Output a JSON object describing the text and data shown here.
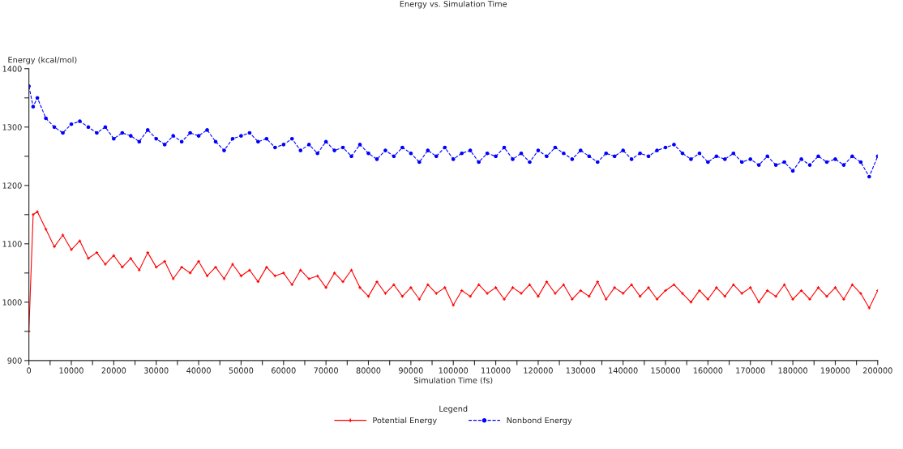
{
  "chart_data": {
    "type": "line",
    "title": "Energy vs. Simulation Time",
    "xlabel": "Simulation Time (fs)",
    "ylabel": "Energy (kcal/mol)",
    "legend_title": "Legend",
    "legend": "bottom",
    "grid": false,
    "xlim": [
      0,
      200000
    ],
    "ylim": [
      900,
      1400
    ],
    "xticks": [
      0,
      {
        "value": 5000,
        "label": null
      },
      10000,
      {
        "value": 15000,
        "label": null
      },
      20000,
      {
        "value": 25000,
        "label": null
      },
      30000,
      {
        "value": 35000,
        "label": null
      },
      40000,
      {
        "value": 45000,
        "label": null
      },
      50000,
      {
        "value": 55000,
        "label": null
      },
      60000,
      {
        "value": 65000,
        "label": null
      },
      70000,
      {
        "value": 75000,
        "label": null
      },
      80000,
      {
        "value": 85000,
        "label": null
      },
      90000,
      {
        "value": 95000,
        "label": null
      },
      100000,
      {
        "value": 105000,
        "label": null
      },
      110000,
      {
        "value": 115000,
        "label": null
      },
      120000,
      {
        "value": 125000,
        "label": null
      },
      130000,
      {
        "value": 135000,
        "label": null
      },
      140000,
      {
        "value": 145000,
        "label": null
      },
      150000,
      {
        "value": 155000,
        "label": null
      },
      160000,
      {
        "value": 165000,
        "label": null
      },
      170000,
      {
        "value": 175000,
        "label": null
      },
      180000,
      {
        "value": 185000,
        "label": null
      },
      190000,
      {
        "value": 195000,
        "label": null
      },
      200000
    ],
    "yticks": [
      900,
      {
        "value": 950,
        "label": null
      },
      1000,
      {
        "value": 1050,
        "label": null
      },
      1100,
      {
        "value": 1150,
        "label": null
      },
      1200,
      {
        "value": 1250,
        "label": null
      },
      1300,
      {
        "value": 1350,
        "label": null
      },
      1400
    ],
    "x": [
      0,
      1000,
      2000,
      4000,
      6000,
      8000,
      10000,
      12000,
      14000,
      16000,
      18000,
      20000,
      22000,
      24000,
      26000,
      28000,
      30000,
      32000,
      34000,
      36000,
      38000,
      40000,
      42000,
      44000,
      46000,
      48000,
      50000,
      52000,
      54000,
      56000,
      58000,
      60000,
      62000,
      64000,
      66000,
      68000,
      70000,
      72000,
      74000,
      76000,
      78000,
      80000,
      82000,
      84000,
      86000,
      88000,
      90000,
      92000,
      94000,
      96000,
      98000,
      100000,
      102000,
      104000,
      106000,
      108000,
      110000,
      112000,
      114000,
      116000,
      118000,
      120000,
      122000,
      124000,
      126000,
      128000,
      130000,
      132000,
      134000,
      136000,
      138000,
      140000,
      142000,
      144000,
      146000,
      148000,
      150000,
      152000,
      154000,
      156000,
      158000,
      160000,
      162000,
      164000,
      166000,
      168000,
      170000,
      172000,
      174000,
      176000,
      178000,
      180000,
      182000,
      184000,
      186000,
      188000,
      190000,
      192000,
      194000,
      196000,
      198000,
      200000
    ],
    "series": [
      {
        "name": "Potential Energy",
        "color": "#ff0000",
        "marker": "cross",
        "line_style": "solid",
        "values": [
          950,
          1150,
          1155,
          1125,
          1095,
          1115,
          1090,
          1105,
          1075,
          1085,
          1065,
          1080,
          1060,
          1075,
          1055,
          1085,
          1060,
          1070,
          1040,
          1060,
          1050,
          1070,
          1045,
          1060,
          1040,
          1065,
          1045,
          1055,
          1035,
          1060,
          1045,
          1050,
          1030,
          1055,
          1040,
          1045,
          1025,
          1050,
          1035,
          1055,
          1025,
          1010,
          1035,
          1015,
          1030,
          1010,
          1025,
          1005,
          1030,
          1015,
          1025,
          995,
          1020,
          1010,
          1030,
          1015,
          1025,
          1005,
          1025,
          1015,
          1030,
          1010,
          1035,
          1015,
          1030,
          1005,
          1020,
          1010,
          1035,
          1005,
          1025,
          1015,
          1030,
          1010,
          1025,
          1005,
          1020,
          1030,
          1015,
          1000,
          1020,
          1005,
          1025,
          1010,
          1030,
          1015,
          1025,
          1000,
          1020,
          1010,
          1030,
          1005,
          1020,
          1005,
          1025,
          1010,
          1025,
          1005,
          1030,
          1015,
          990,
          1020
        ]
      },
      {
        "name": "Nonbond Energy",
        "color": "#0000ff",
        "marker": "circle",
        "line_style": "dashed",
        "values": [
          1370,
          1335,
          1350,
          1315,
          1300,
          1290,
          1305,
          1310,
          1300,
          1290,
          1300,
          1280,
          1290,
          1285,
          1275,
          1295,
          1280,
          1270,
          1285,
          1275,
          1290,
          1285,
          1295,
          1275,
          1260,
          1280,
          1285,
          1290,
          1275,
          1280,
          1265,
          1270,
          1280,
          1260,
          1270,
          1255,
          1275,
          1260,
          1265,
          1250,
          1270,
          1255,
          1245,
          1260,
          1250,
          1265,
          1255,
          1240,
          1260,
          1250,
          1265,
          1245,
          1255,
          1260,
          1240,
          1255,
          1250,
          1265,
          1245,
          1255,
          1240,
          1260,
          1250,
          1265,
          1255,
          1245,
          1260,
          1250,
          1240,
          1255,
          1250,
          1260,
          1245,
          1255,
          1250,
          1260,
          1265,
          1270,
          1255,
          1245,
          1255,
          1240,
          1250,
          1245,
          1255,
          1240,
          1245,
          1235,
          1250,
          1235,
          1240,
          1225,
          1245,
          1235,
          1250,
          1240,
          1245,
          1235,
          1250,
          1240,
          1215,
          1250
        ]
      }
    ]
  }
}
